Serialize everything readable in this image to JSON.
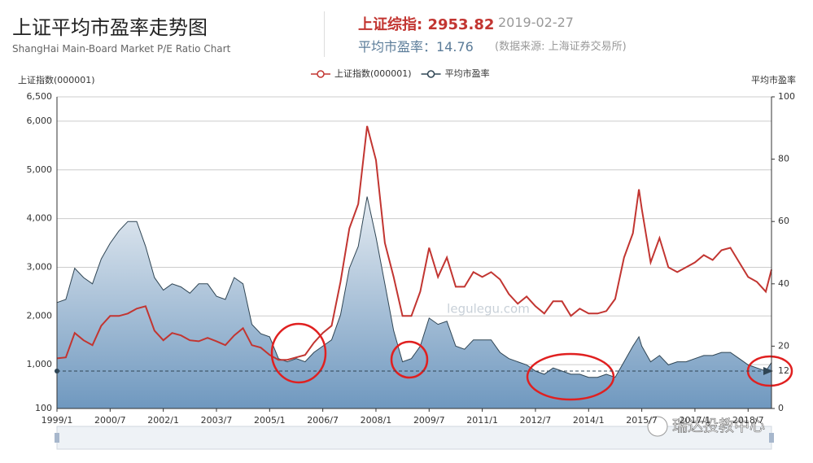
{
  "header": {
    "title": "上证平均市盈率走势图",
    "subtitle": "ShangHai Main-Board Market P/E Ratio Chart",
    "index_label": "上证综指: 2953.82",
    "date": "2019-02-27",
    "pe_label": "平均市盈率：14.76",
    "source": "(数据来源: 上海证券交易所)"
  },
  "chart_data": {
    "type": "line",
    "y_label": "上证指数(000001)",
    "y2_label": "平均市盈率",
    "x": [
      1999.0,
      1999.25,
      1999.5,
      1999.75,
      2000.0,
      2000.25,
      2000.5,
      2000.75,
      2001.0,
      2001.25,
      2001.5,
      2001.75,
      2002.0,
      2002.25,
      2002.5,
      2002.75,
      2003.0,
      2003.25,
      2003.5,
      2003.75,
      2004.0,
      2004.25,
      2004.5,
      2004.75,
      2005.0,
      2005.25,
      2005.5,
      2005.75,
      2006.0,
      2006.25,
      2006.5,
      2006.75,
      2007.0,
      2007.25,
      2007.5,
      2007.75,
      2008.0,
      2008.25,
      2008.5,
      2008.75,
      2009.0,
      2009.25,
      2009.5,
      2009.75,
      2010.0,
      2010.25,
      2010.5,
      2010.75,
      2011.0,
      2011.25,
      2011.5,
      2011.75,
      2012.0,
      2012.25,
      2012.5,
      2012.75,
      2013.0,
      2013.25,
      2013.5,
      2013.75,
      2014.0,
      2014.25,
      2014.5,
      2014.75,
      2015.0,
      2015.25,
      2015.42,
      2015.5,
      2015.75,
      2016.0,
      2016.25,
      2016.5,
      2016.75,
      2017.0,
      2017.25,
      2017.5,
      2017.75,
      2018.0,
      2018.25,
      2018.5,
      2018.75,
      2019.0,
      2019.16
    ],
    "series": [
      {
        "name": "上证指数(000001)",
        "color": "#c23531",
        "values": [
          1130,
          1150,
          1650,
          1500,
          1400,
          1800,
          2000,
          2000,
          2050,
          2150,
          2200,
          1700,
          1500,
          1650,
          1600,
          1500,
          1480,
          1550,
          1480,
          1400,
          1600,
          1750,
          1400,
          1350,
          1200,
          1100,
          1100,
          1150,
          1200,
          1450,
          1650,
          1800,
          2700,
          3800,
          4300,
          5900,
          5200,
          3500,
          2800,
          2000,
          2000,
          2500,
          3400,
          2800,
          3200,
          2600,
          2600,
          2900,
          2800,
          2900,
          2750,
          2450,
          2250,
          2400,
          2200,
          2050,
          2300,
          2300,
          2000,
          2150,
          2050,
          2050,
          2100,
          2350,
          3200,
          3700,
          4600,
          4200,
          3100,
          3600,
          3000,
          2900,
          3000,
          3100,
          3250,
          3150,
          3350,
          3400,
          3100,
          2800,
          2700,
          2500,
          2953.82
        ]
      },
      {
        "name": "平均市盈率",
        "color": "#2f4554",
        "axis": "y2",
        "area": true,
        "values": [
          34,
          35,
          45,
          42,
          40,
          48,
          53,
          57,
          60,
          60,
          52,
          42,
          38,
          40,
          39,
          37,
          40,
          40,
          36,
          35,
          42,
          40,
          27,
          24,
          23,
          16,
          15,
          16,
          15,
          18,
          20,
          22,
          30,
          45,
          52,
          68,
          55,
          40,
          25,
          15,
          16,
          20,
          29,
          27,
          28,
          20,
          19,
          22,
          22,
          22,
          18,
          16,
          15,
          14,
          12,
          11,
          13,
          12,
          11,
          11,
          10,
          10,
          11,
          10,
          15,
          20,
          23,
          20,
          15,
          17,
          14,
          15,
          15,
          16,
          17,
          17,
          18,
          18,
          16,
          14,
          13,
          12,
          14.76
        ]
      }
    ],
    "xlim": [
      1999.0,
      2019.16
    ],
    "xticks": [
      {
        "value": 1999.0,
        "label": "1999/1"
      },
      {
        "value": 2000.5,
        "label": "2000/7"
      },
      {
        "value": 2002.0,
        "label": "2002/1"
      },
      {
        "value": 2003.5,
        "label": "2003/7"
      },
      {
        "value": 2005.0,
        "label": "2005/1"
      },
      {
        "value": 2006.5,
        "label": "2006/7"
      },
      {
        "value": 2008.0,
        "label": "2008/1"
      },
      {
        "value": 2009.5,
        "label": "2009/7"
      },
      {
        "value": 2011.0,
        "label": "2011/1"
      },
      {
        "value": 2012.5,
        "label": "2012/7"
      },
      {
        "value": 2014.0,
        "label": "2014/1"
      },
      {
        "value": 2015.5,
        "label": "2015/7"
      },
      {
        "value": 2017.0,
        "label": "2017/1"
      },
      {
        "value": 2018.5,
        "label": "2018/7"
      }
    ],
    "ylim": [
      100,
      6500
    ],
    "yticks": [
      100,
      {
        "value": 1000,
        "label": "1,000"
      },
      {
        "value": 2000,
        "label": "2,000"
      },
      {
        "value": 3000,
        "label": "3,000"
      },
      {
        "value": 4000,
        "label": "4,000"
      },
      {
        "value": 5000,
        "label": "5,000"
      },
      {
        "value": 6000,
        "label": "6,000"
      },
      {
        "value": 6500,
        "label": "6,500"
      }
    ],
    "y2lim": [
      0,
      100
    ],
    "y2ticks": [
      0,
      20,
      40,
      60,
      80,
      100
    ],
    "reference_line": 12,
    "grid": true,
    "legend": "top"
  },
  "watermarks": [
    "legulegu.com",
    "瑞达投教中心"
  ]
}
